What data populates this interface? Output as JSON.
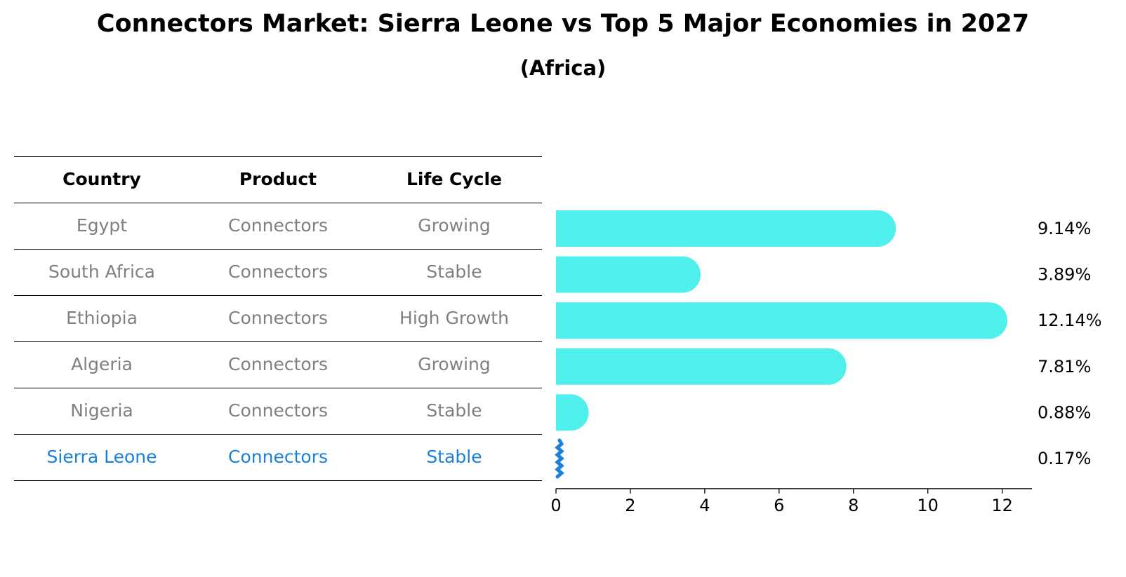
{
  "title": "Connectors Market: Sierra Leone vs Top 5 Major Economies in 2027",
  "subtitle": "(Africa)",
  "table": {
    "headers": [
      "Country",
      "Product",
      "Life Cycle"
    ],
    "rows": [
      [
        "Egypt",
        "Connectors",
        "Growing"
      ],
      [
        "South Africa",
        "Connectors",
        "Stable"
      ],
      [
        "Ethiopia",
        "Connectors",
        "High Growth"
      ],
      [
        "Algeria",
        "Connectors",
        "Growing"
      ],
      [
        "Nigeria",
        "Connectors",
        "Stable"
      ],
      [
        "Sierra Leone",
        "Connectors",
        "Stable"
      ]
    ],
    "highlight_row": 5
  },
  "colors": {
    "bar": "#4ff0ec",
    "highlight": "#1a80d9",
    "muted_text": "#808080"
  },
  "chart_data": {
    "type": "bar",
    "orientation": "horizontal",
    "categories": [
      "Egypt",
      "South Africa",
      "Ethiopia",
      "Algeria",
      "Nigeria",
      "Sierra Leone"
    ],
    "values": [
      9.14,
      3.89,
      12.14,
      7.81,
      0.88,
      0.17
    ],
    "value_labels": [
      "9.14%",
      "3.89%",
      "12.14%",
      "7.81%",
      "0.88%",
      "0.17%"
    ],
    "xlim": [
      0,
      12.8
    ],
    "xticks": [
      0,
      2,
      4,
      6,
      8,
      10,
      12
    ],
    "xlabel": "",
    "ylabel": "",
    "grid": false,
    "legend": "none"
  }
}
